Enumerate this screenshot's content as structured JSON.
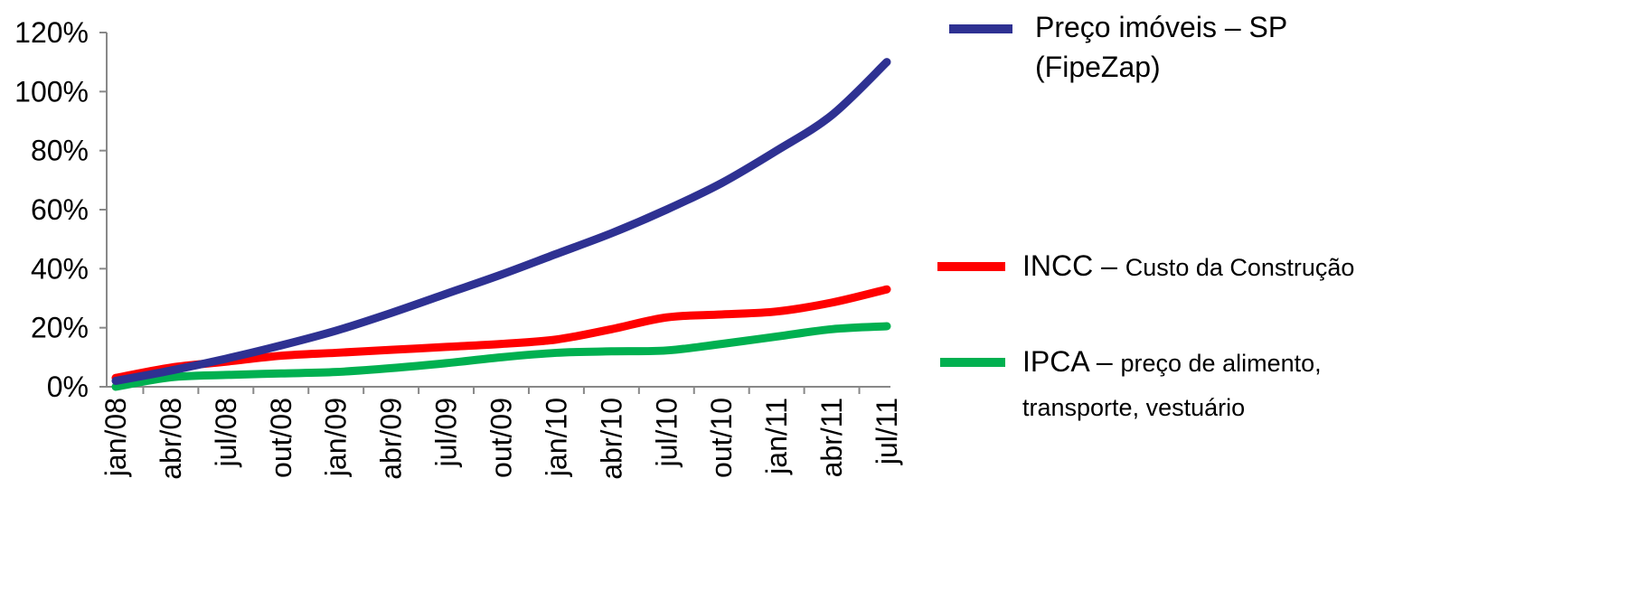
{
  "chart_data": {
    "type": "line",
    "categories": [
      "jan/08",
      "abr/08",
      "jul/08",
      "out/08",
      "jan/09",
      "abr/09",
      "jul/09",
      "out/09",
      "jan/10",
      "abr/10",
      "jul/10",
      "out/10",
      "jan/11",
      "abr/11",
      "jul/11"
    ],
    "ylim": [
      0,
      120
    ],
    "yticks": [
      "0%",
      "20%",
      "40%",
      "60%",
      "80%",
      "100%",
      "120%"
    ],
    "legend_position": "right",
    "series": [
      {
        "name": "Preço imóveis – SP (FipeZap)",
        "color": "#2e3192",
        "values": [
          2,
          5.5,
          9.5,
          14,
          19,
          25,
          31.5,
          38,
          45,
          52,
          60,
          69,
          80,
          92,
          110
        ]
      },
      {
        "name": "INCC – Custo da Construção",
        "color": "#ff0000",
        "values": [
          3,
          6.5,
          8.5,
          10.5,
          11.5,
          12.5,
          13.5,
          14.5,
          16,
          19.5,
          23.5,
          24.5,
          25.5,
          28.5,
          33
        ]
      },
      {
        "name": "IPCA – preço de alimento, transporte, vestuário",
        "color": "#00b050",
        "values": [
          0,
          3.2,
          4,
          4.5,
          5,
          6.3,
          8,
          10,
          11.5,
          12,
          12.3,
          14.5,
          17,
          19.5,
          20.5
        ]
      }
    ]
  },
  "legend": {
    "fipezap_line1": "Preço imóveis – SP",
    "fipezap_line2": "(FipeZap)",
    "incc_main": "INCC – ",
    "incc_sub": "Custo da Construção",
    "ipca_main": "IPCA – ",
    "ipca_sub_line1": "preço de alimento,",
    "ipca_sub_line2": "transporte, vestuário"
  }
}
